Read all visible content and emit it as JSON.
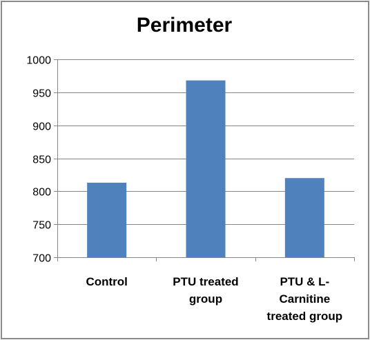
{
  "chart_data": {
    "type": "bar",
    "title": "Perimeter",
    "categories": [
      [
        "Control"
      ],
      [
        "PTU treated",
        "group"
      ],
      [
        "PTU & L-",
        "Carnitine",
        "treated group"
      ]
    ],
    "values": [
      813,
      968,
      820
    ],
    "ylim": [
      700,
      1000
    ],
    "yticks": [
      700,
      750,
      800,
      850,
      900,
      950,
      1000
    ],
    "grid": true,
    "legend": "none",
    "colors": {
      "bar": "#4F81BD",
      "grid": "#868686",
      "axis": "#868686"
    }
  }
}
